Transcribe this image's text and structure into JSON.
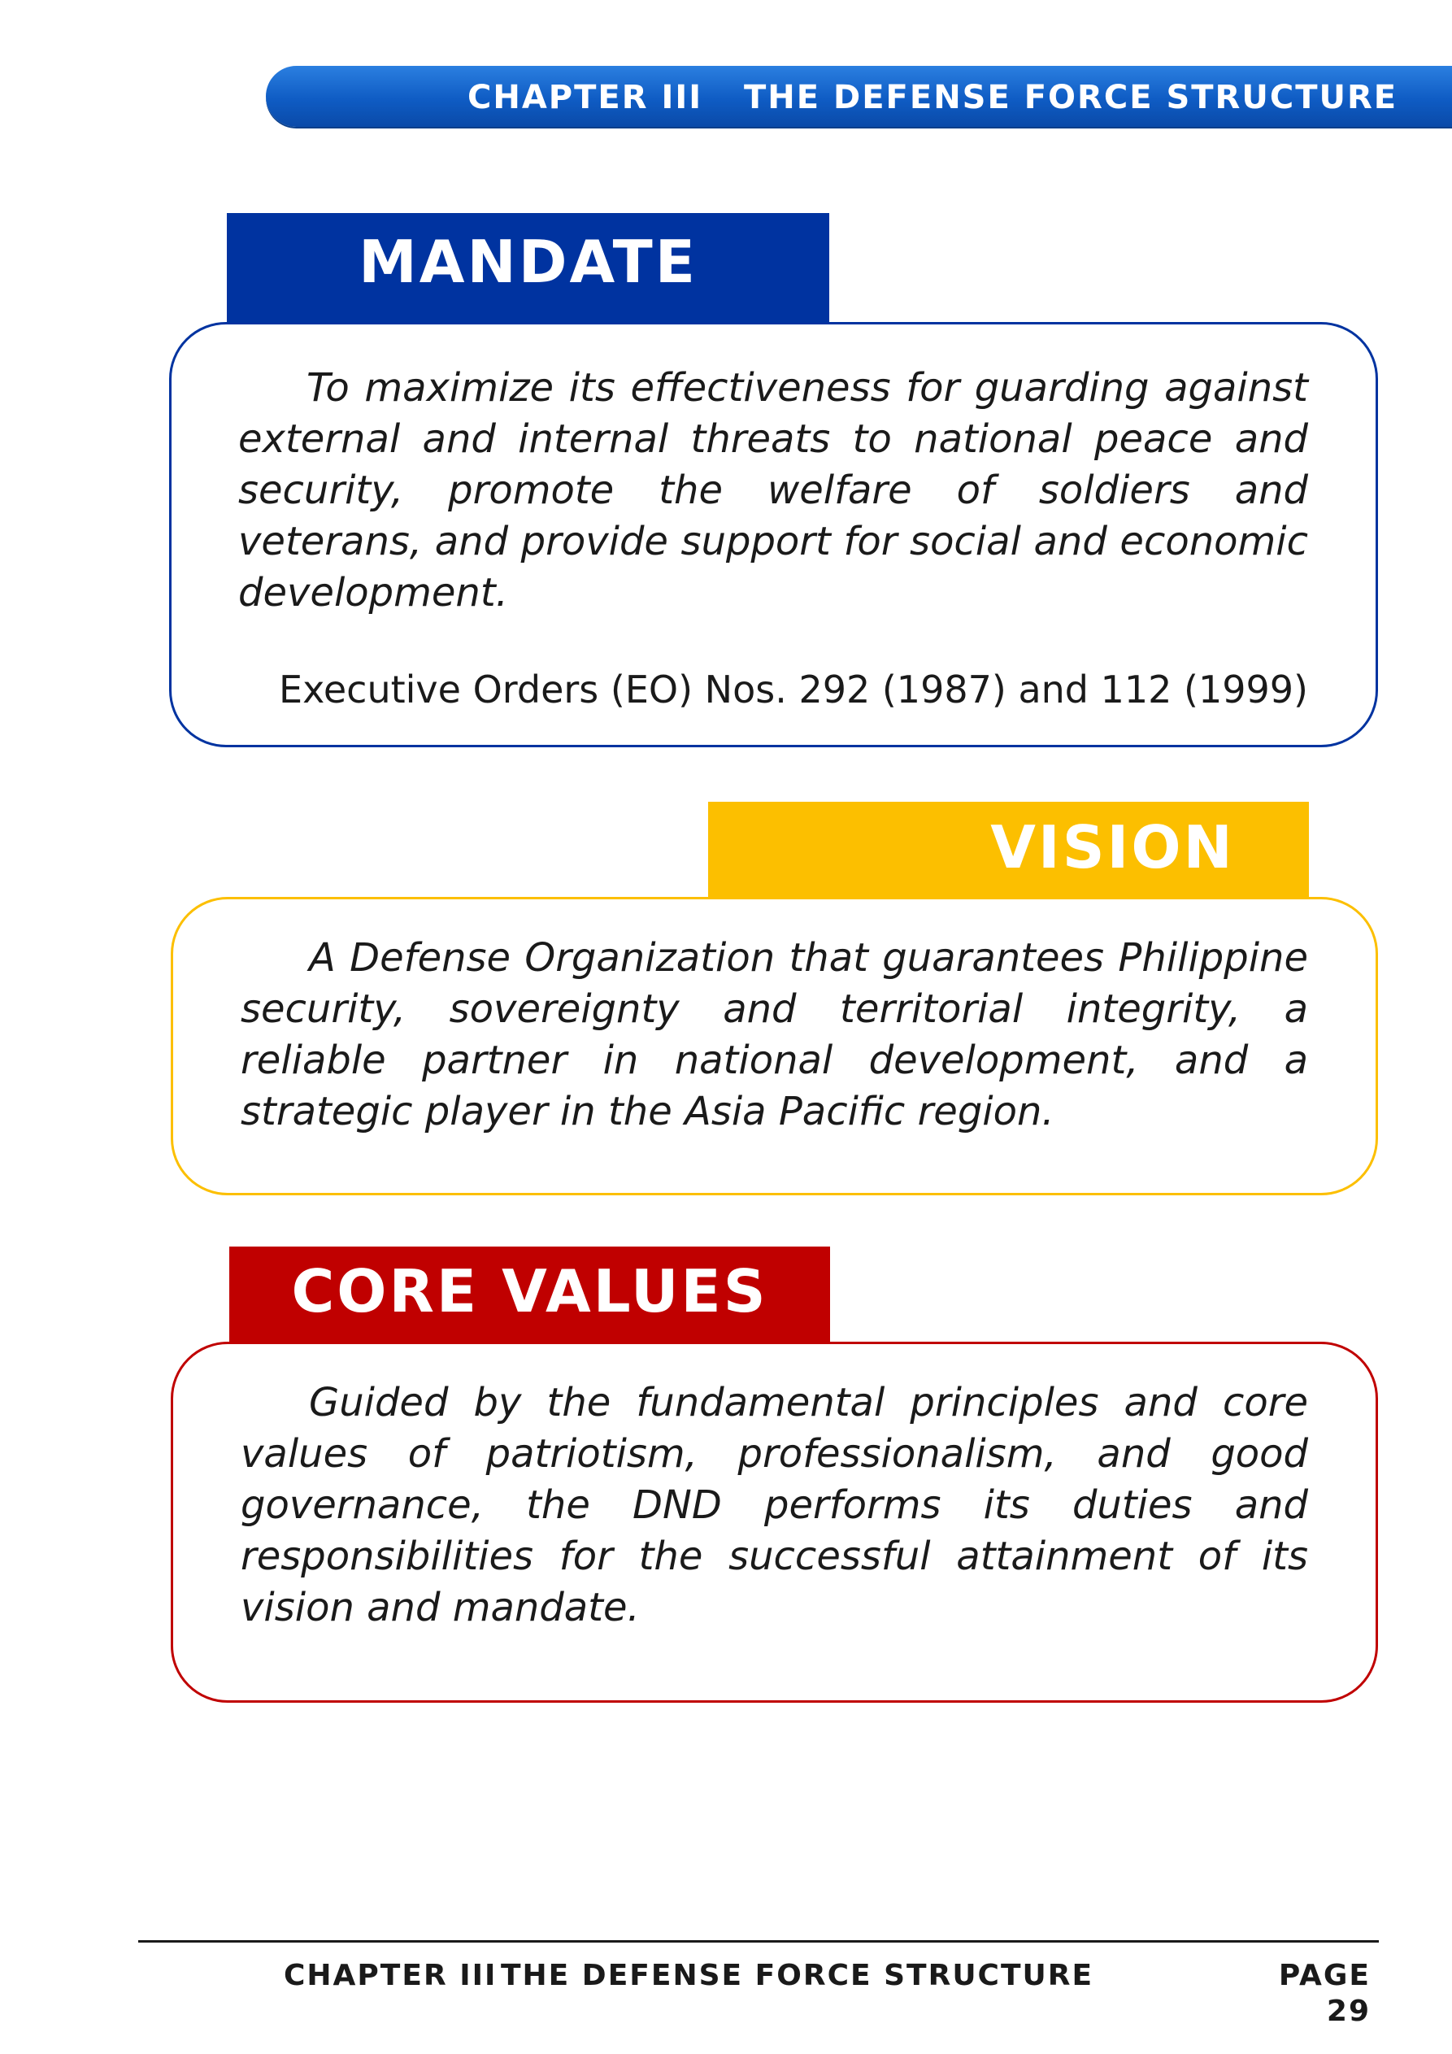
{
  "header": {
    "chapter": "CHAPTER III",
    "title": "THE DEFENSE FORCE STRUCTURE"
  },
  "mandate": {
    "heading": "MANDATE",
    "text": "To maximize its effectiveness for guarding against external and internal threats to national peace and security, promote the welfare of soldiers and veterans, and provide support for social and economic development.",
    "source": "Executive Orders (EO) Nos. 292 (1987) and 112 (1999)",
    "color": "#0033a0"
  },
  "vision": {
    "heading": "VISION",
    "text": "A Defense Organization that guarantees Philippine security, sovereignty and territorial integrity, a reliable partner in national development, and a strategic player in the Asia Pacific region.",
    "color": "#fcbf00"
  },
  "core_values": {
    "heading": "CORE VALUES",
    "text": "Guided by the fundamental principles and core values of patriotism, professionalism, and good governance, the DND performs its duties and responsibilities for the successful attainment of its vision and mandate.",
    "color": "#c00000"
  },
  "footer": {
    "chapter": "CHAPTER III",
    "title": "THE DEFENSE FORCE STRUCTURE",
    "page_label": "PAGE 29"
  }
}
